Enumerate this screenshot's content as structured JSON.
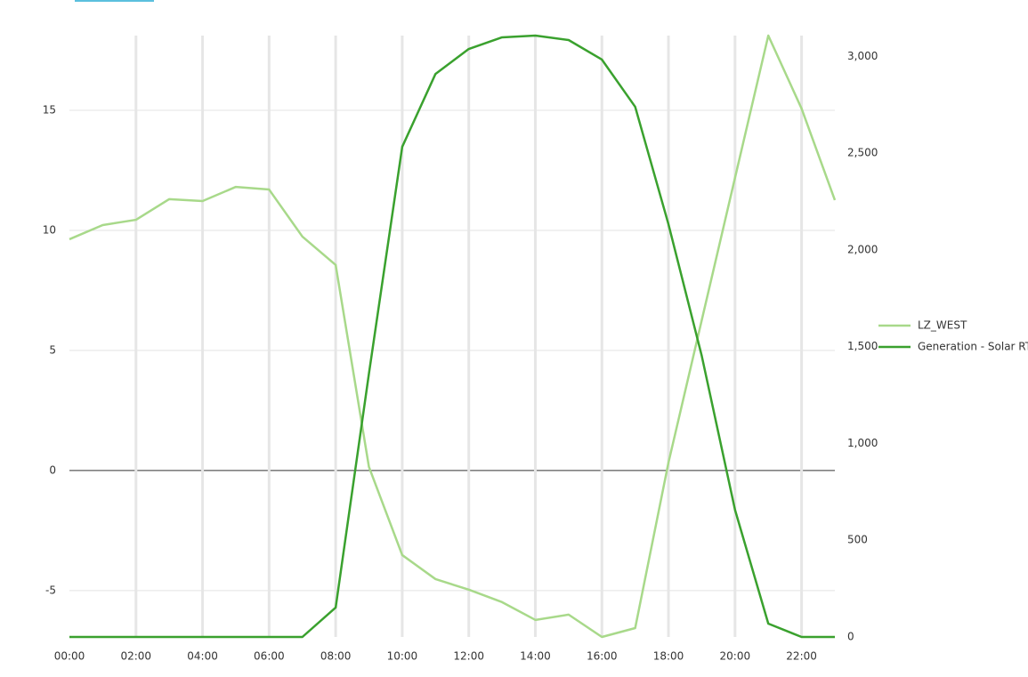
{
  "chart_data": {
    "type": "line",
    "categories": [
      "00:00",
      null,
      "02:00",
      null,
      "04:00",
      null,
      "06:00",
      null,
      "08:00",
      null,
      "10:00",
      null,
      "12:00",
      null,
      "14:00",
      null,
      "16:00",
      null,
      "18:00",
      null,
      "20:00",
      null,
      "22:00",
      null
    ],
    "series": [
      {
        "name": "LZ_WEST",
        "color": "#a8d98a",
        "values": [
          9.63,
          10.22,
          10.44,
          11.3,
          11.22,
          11.81,
          11.7,
          9.74,
          8.56,
          0.15,
          -3.52,
          -4.52,
          -4.96,
          -5.48,
          -6.22,
          -6.0,
          -6.93,
          -6.56,
          0.33,
          6.26,
          12.19,
          18.11,
          15.07,
          11.26
        ]
      },
      {
        "name": "Generation - Solar RT",
        "color": "#3aa12e",
        "axis": "y2",
        "values": [
          0,
          0,
          0,
          0,
          0,
          0,
          0,
          0,
          152,
          1361,
          2533,
          2910,
          3039,
          3099,
          3108,
          3085,
          2984,
          2740,
          2133,
          1453,
          657,
          69,
          0,
          0
        ]
      }
    ],
    "ylim": [
      -6.93,
      18.11
    ],
    "yticks": [
      -5,
      0,
      5,
      10,
      15
    ],
    "y2lim": [
      0,
      3108
    ],
    "y2ticks": [
      0,
      500,
      {
        "value": 1000,
        "label": "1,000"
      },
      {
        "value": 1500,
        "label": "1,500"
      },
      {
        "value": 2000,
        "label": "2,000"
      },
      {
        "value": 2500,
        "label": "2,500"
      },
      {
        "value": 3000,
        "label": "3,000"
      }
    ],
    "grid": true,
    "legend": "right"
  }
}
